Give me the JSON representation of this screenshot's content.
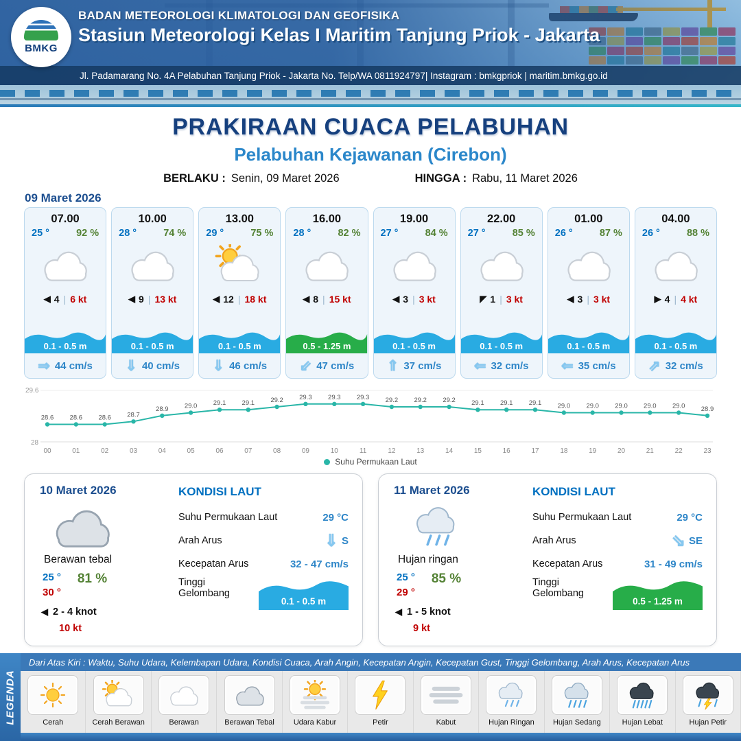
{
  "header": {
    "agency": "BADAN METEOROLOGI KLIMATOLOGI DAN GEOFISIKA",
    "station": "Stasiun Meteorologi Kelas I Maritim Tanjung Priok - Jakarta",
    "address": "Jl. Padamarang No. 4A Pelabuhan Tanjung Priok - Jakarta No. Telp/WA 0811924797| Instagram : bmkgpriok | maritim.bmkg.go.id",
    "logo_text": "BMKG"
  },
  "page": {
    "title": "PRAKIRAAN CUACA PELABUHAN",
    "subtitle": "Pelabuhan Kejawanan (Cirebon)"
  },
  "validity": {
    "berlaku_label": "BERLAKU :",
    "berlaku_value": "Senin, 09 Maret 2026",
    "hingga_label": "HINGGA :",
    "hingga_value": "Rabu, 11 Maret 2026"
  },
  "forecast_date": "09 Maret 2026",
  "cards": [
    {
      "time": "07.00",
      "temp": "25 °",
      "humidity": "92 %",
      "icon": "berawan",
      "wind_dir": "◀",
      "wind_val": "4",
      "wind_gust": "6 kt",
      "wave": "0.1 - 0.5 m",
      "wave_color": "#29abe2",
      "current_dir": "⇒",
      "current_speed": "44 cm/s"
    },
    {
      "time": "10.00",
      "temp": "28 °",
      "humidity": "74 %",
      "icon": "berawan",
      "wind_dir": "◀",
      "wind_val": "9",
      "wind_gust": "13 kt",
      "wave": "0.1 - 0.5 m",
      "wave_color": "#29abe2",
      "current_dir": "⇓",
      "current_speed": "40 cm/s"
    },
    {
      "time": "13.00",
      "temp": "29 °",
      "humidity": "75 %",
      "icon": "cerah-berawan",
      "wind_dir": "◀",
      "wind_val": "12",
      "wind_gust": "18 kt",
      "wave": "0.1 - 0.5 m",
      "wave_color": "#29abe2",
      "current_dir": "⇓",
      "current_speed": "46 cm/s"
    },
    {
      "time": "16.00",
      "temp": "28 °",
      "humidity": "82 %",
      "icon": "berawan",
      "wind_dir": "◀",
      "wind_val": "8",
      "wind_gust": "15 kt",
      "wave": "0.5 - 1.25 m",
      "wave_color": "#27ad49",
      "current_dir": "⇙",
      "current_speed": "47 cm/s"
    },
    {
      "time": "19.00",
      "temp": "27 °",
      "humidity": "84 %",
      "icon": "berawan",
      "wind_dir": "◀",
      "wind_val": "3",
      "wind_gust": "3 kt",
      "wave": "0.1 - 0.5 m",
      "wave_color": "#29abe2",
      "current_dir": "⇑",
      "current_speed": "37 cm/s"
    },
    {
      "time": "22.00",
      "temp": "27 °",
      "humidity": "85 %",
      "icon": "berawan",
      "wind_dir": "◤",
      "wind_val": "1",
      "wind_gust": "3 kt",
      "wave": "0.1 - 0.5 m",
      "wave_color": "#29abe2",
      "current_dir": "⇐",
      "current_speed": "32 cm/s"
    },
    {
      "time": "01.00",
      "temp": "26 °",
      "humidity": "87 %",
      "icon": "berawan",
      "wind_dir": "◀",
      "wind_val": "3",
      "wind_gust": "3 kt",
      "wave": "0.1 - 0.5 m",
      "wave_color": "#29abe2",
      "current_dir": "⇐",
      "current_speed": "35 cm/s"
    },
    {
      "time": "04.00",
      "temp": "26 °",
      "humidity": "88 %",
      "icon": "berawan",
      "wind_dir": "▶",
      "wind_val": "4",
      "wind_gust": "4 kt",
      "wave": "0.1 - 0.5 m",
      "wave_color": "#29abe2",
      "current_dir": "⇗",
      "current_speed": "32 cm/s"
    }
  ],
  "chart_data": {
    "type": "line",
    "title": "Suhu Permukaan Laut",
    "legend": "Suhu Permukaan Laut",
    "color": "#29b6a8",
    "ylim": [
      28,
      29.6
    ],
    "unit": "°C",
    "x": [
      "00",
      "01",
      "02",
      "03",
      "04",
      "05",
      "06",
      "07",
      "08",
      "09",
      "10",
      "11",
      "12",
      "13",
      "14",
      "15",
      "16",
      "17",
      "18",
      "19",
      "20",
      "21",
      "22",
      "23"
    ],
    "values": [
      28.6,
      28.6,
      28.6,
      28.7,
      28.9,
      29.0,
      29.1,
      29.1,
      29.2,
      29.3,
      29.3,
      29.3,
      29.2,
      29.2,
      29.2,
      29.1,
      29.1,
      29.1,
      29.0,
      29.0,
      29.0,
      29.0,
      29.0,
      28.9
    ]
  },
  "days": [
    {
      "date": "10 Maret 2026",
      "icon": "berawan-tebal",
      "condition": "Berawan tebal",
      "temp_min": "25 °",
      "temp_max": "30 °",
      "humidity": "81 %",
      "wind_dir": "◀",
      "wind_range": "2  - 4 knot",
      "wind_gust": "10 kt",
      "sea": {
        "title": "KONDISI LAUT",
        "sst_label": "Suhu Permukaan Laut",
        "sst_value": "29 °C",
        "dir_label": "Arah Arus",
        "dir_icon": "⇓",
        "dir_value": "S",
        "spd_label": "Kecepatan Arus",
        "spd_value": "32 - 47 cm/s",
        "wave_label": "Tinggi Gelombang",
        "wave_value": "0.1 - 0.5 m",
        "wave_color": "#29abe2"
      }
    },
    {
      "date": "11 Maret 2026",
      "icon": "hujan-ringan",
      "condition": "Hujan ringan",
      "temp_min": "25 °",
      "temp_max": "29 °",
      "humidity": "85 %",
      "wind_dir": "◀",
      "wind_range": "1  - 5 knot",
      "wind_gust": "9 kt",
      "sea": {
        "title": "KONDISI LAUT",
        "sst_label": "Suhu Permukaan Laut",
        "sst_value": "29 °C",
        "dir_label": "Arah Arus",
        "dir_icon": "⇘",
        "dir_value": "SE",
        "spd_label": "Kecepatan Arus",
        "spd_value": "31 - 49 cm/s",
        "wave_label": "Tinggi Gelombang",
        "wave_value": "0.5 - 1.25 m",
        "wave_color": "#27ad49"
      }
    }
  ],
  "legend": {
    "title": "LEGENDA",
    "strip_text": "Dari Atas Kiri : Waktu, Suhu Udara, Kelembapan Udara, Kondisi Cuaca, Arah Angin, Kecepatan Angin, Kecepatan Gust, Tinggi Gelombang, Arah Arus, Kecepatan Arus",
    "items": [
      {
        "label": "Cerah",
        "icon": "cerah"
      },
      {
        "label": "Cerah Berawan",
        "icon": "cerah-berawan"
      },
      {
        "label": "Berawan",
        "icon": "berawan"
      },
      {
        "label": "Berawan Tebal",
        "icon": "berawan-tebal"
      },
      {
        "label": "Udara Kabur",
        "icon": "udara-kabur"
      },
      {
        "label": "Petir",
        "icon": "petir"
      },
      {
        "label": "Kabut",
        "icon": "kabut"
      },
      {
        "label": "Hujan Ringan",
        "icon": "hujan-ringan"
      },
      {
        "label": "Hujan Sedang",
        "icon": "hujan-sedang"
      },
      {
        "label": "Hujan Lebat",
        "icon": "hujan-lebat"
      },
      {
        "label": "Hujan Petir",
        "icon": "hujan-petir"
      }
    ]
  }
}
